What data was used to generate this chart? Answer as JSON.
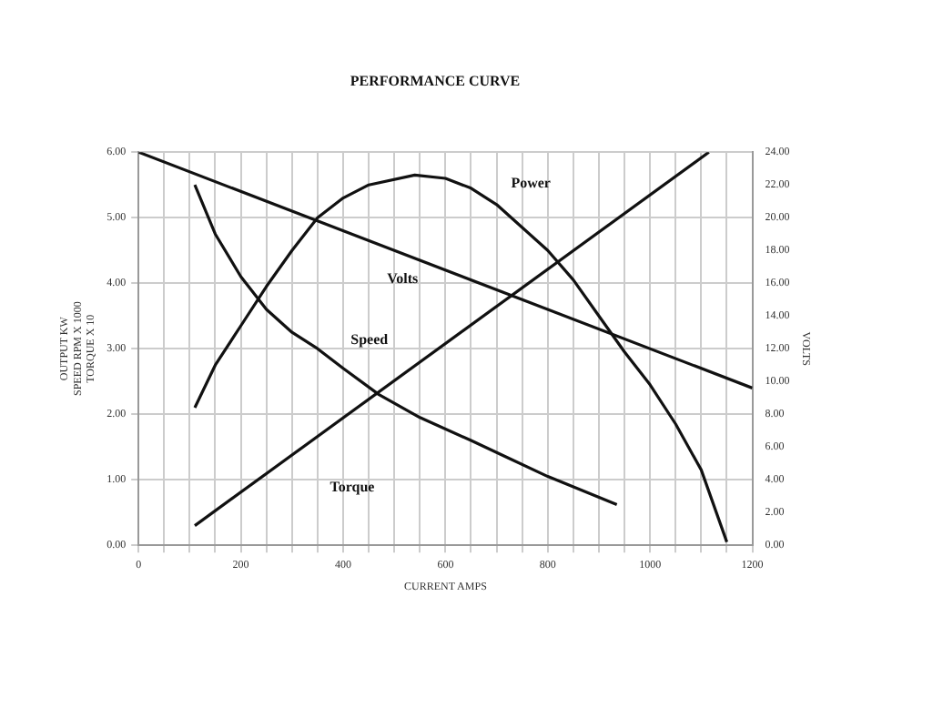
{
  "chart_data": {
    "type": "line",
    "title": "PERFORMANCE CURVE",
    "xlabel": "CURRENT AMPS",
    "ylabel": "OUTPUT KW\nSPEED RPM X 1000\nTORQUE X 10",
    "y2label": "VOLTS",
    "xlim": [
      0,
      1200
    ],
    "xticks": [
      0,
      {
        "value": 50,
        "label": null
      },
      {
        "value": 100,
        "label": null
      },
      {
        "value": 150,
        "label": null
      },
      200,
      {
        "value": 250,
        "label": null
      },
      {
        "value": 300,
        "label": null
      },
      {
        "value": 350,
        "label": null
      },
      400,
      {
        "value": 450,
        "label": null
      },
      {
        "value": 500,
        "label": null
      },
      {
        "value": 550,
        "label": null
      },
      600,
      {
        "value": 650,
        "label": null
      },
      {
        "value": 700,
        "label": null
      },
      {
        "value": 750,
        "label": null
      },
      800,
      {
        "value": 850,
        "label": null
      },
      {
        "value": 900,
        "label": null
      },
      {
        "value": 950,
        "label": null
      },
      1000,
      {
        "value": 1050,
        "label": null
      },
      {
        "value": 1100,
        "label": null
      },
      {
        "value": 1150,
        "label": null
      },
      1200
    ],
    "ylim": [
      0,
      6
    ],
    "yticks": [
      {
        "value": 0,
        "label": "0.00"
      },
      {
        "value": 1,
        "label": "1.00"
      },
      {
        "value": 2,
        "label": "2.00"
      },
      {
        "value": 3,
        "label": "3.00"
      },
      {
        "value": 4,
        "label": "4.00"
      },
      {
        "value": 5,
        "label": "5.00"
      },
      {
        "value": 6,
        "label": "6.00"
      }
    ],
    "y2lim": [
      0,
      24
    ],
    "y2ticks": [
      {
        "value": 0,
        "label": "0.00"
      },
      {
        "value": 2,
        "label": "2.00"
      },
      {
        "value": 4,
        "label": "4.00"
      },
      {
        "value": 6,
        "label": "6.00"
      },
      {
        "value": 8,
        "label": "8.00"
      },
      {
        "value": 10,
        "label": "10.00"
      },
      {
        "value": 12,
        "label": "12.00"
      },
      {
        "value": 14,
        "label": "14.00"
      },
      {
        "value": 16,
        "label": "16.00"
      },
      {
        "value": 18,
        "label": "18.00"
      },
      {
        "value": 20,
        "label": "20.00"
      },
      {
        "value": 22,
        "label": "22.00"
      },
      {
        "value": 24,
        "label": "24.00"
      }
    ],
    "grid": true,
    "legend": false,
    "marker": "none",
    "line_style": "solid",
    "series": [
      {
        "name": "Power",
        "color": "#111111",
        "x": [
          110,
          150,
          200,
          250,
          300,
          350,
          400,
          450,
          540,
          600,
          650,
          700,
          750,
          800,
          850,
          900,
          950,
          1000,
          1050,
          1100,
          1150
        ],
        "values": [
          2.1,
          2.75,
          3.35,
          3.95,
          4.5,
          5.0,
          5.3,
          5.5,
          5.65,
          5.6,
          5.45,
          5.2,
          4.85,
          4.5,
          4.05,
          3.5,
          2.95,
          2.45,
          1.85,
          1.15,
          0.05
        ]
      },
      {
        "name": "Volts",
        "color": "#111111",
        "axis": "y2",
        "x": [
          0,
          1200
        ],
        "values": [
          24,
          9.6
        ]
      },
      {
        "name": "Speed",
        "color": "#111111",
        "x": [
          110,
          150,
          200,
          250,
          300,
          350,
          400,
          470,
          550,
          650,
          718,
          800,
          935
        ],
        "values": [
          5.5,
          4.75,
          4.1,
          3.6,
          3.25,
          3.0,
          2.7,
          2.3,
          1.95,
          1.6,
          1.35,
          1.05,
          0.62
        ]
      },
      {
        "name": "Torque",
        "color": "#111111",
        "x": [
          110,
          1115
        ],
        "values": [
          0.3,
          6.0
        ]
      }
    ]
  }
}
